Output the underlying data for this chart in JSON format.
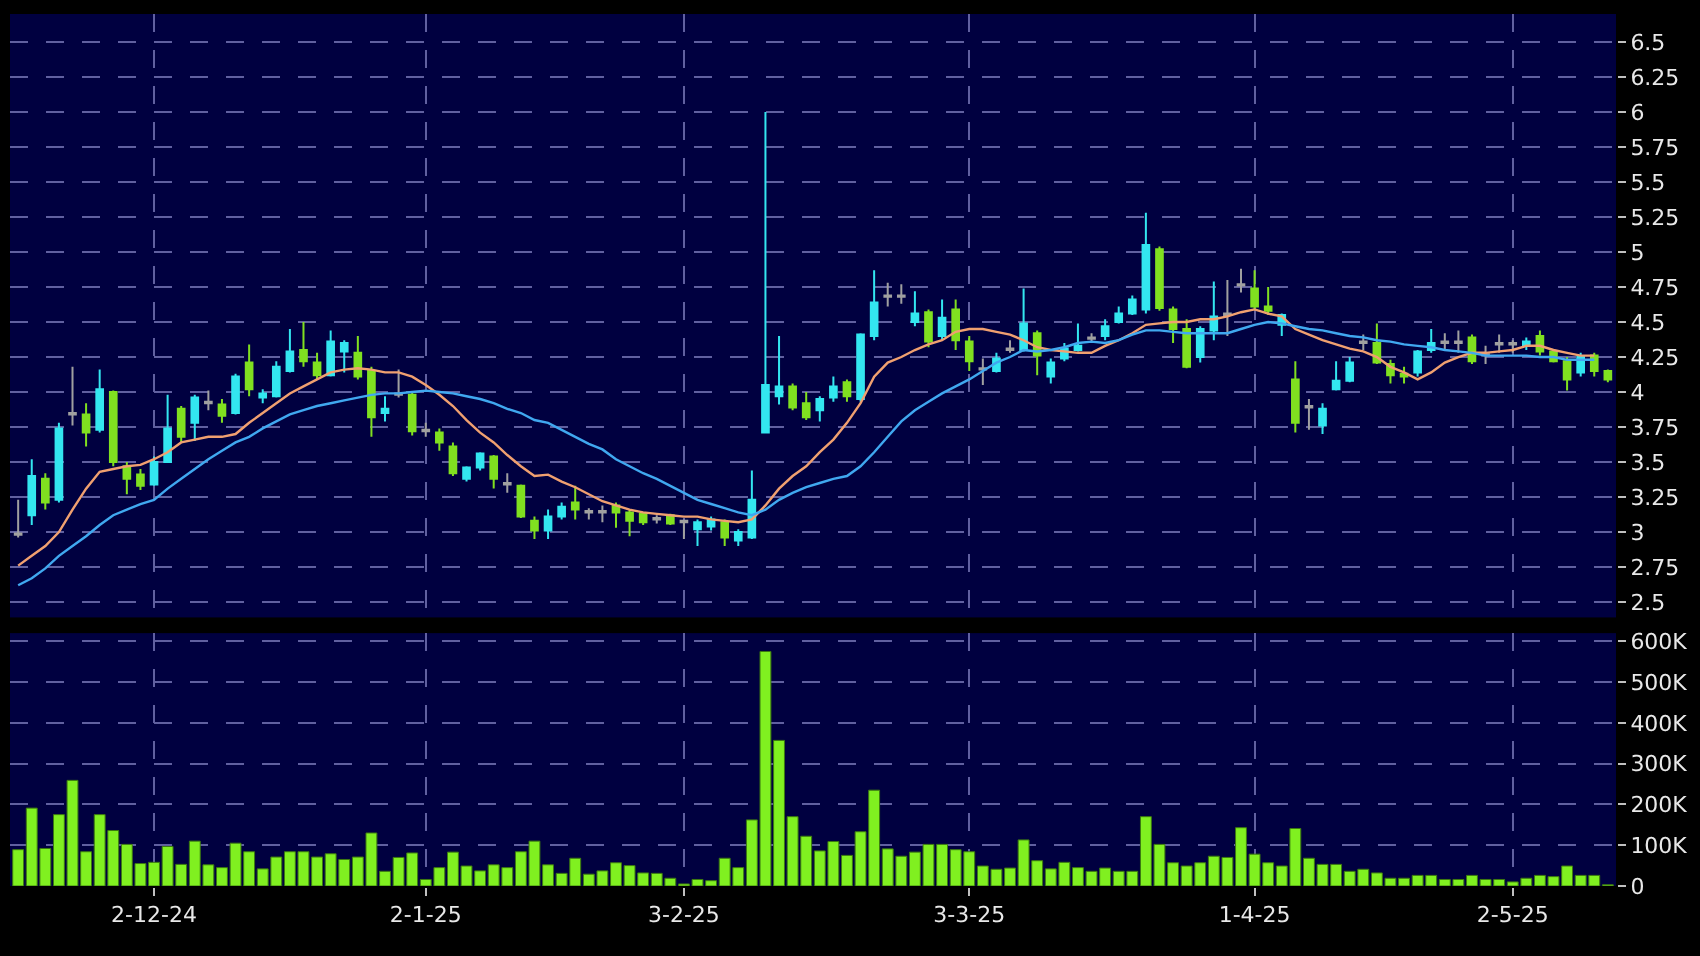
{
  "chart_data": [
    {
      "type": "candlestick",
      "categories": [
        null,
        null,
        null,
        null,
        null,
        null,
        null,
        null,
        null,
        null,
        null,
        null,
        null,
        null,
        null,
        null,
        null,
        null,
        null,
        null,
        null,
        null,
        null,
        null,
        null,
        null,
        null,
        null,
        null,
        null,
        null,
        null,
        null,
        null,
        null,
        null,
        null,
        null,
        null,
        null,
        null,
        null,
        null,
        null,
        null,
        null,
        null,
        null,
        null,
        null,
        null,
        null,
        null,
        null,
        null,
        null,
        null,
        null,
        null,
        null,
        null,
        null,
        null,
        null,
        null,
        null,
        null,
        null,
        null,
        null,
        null,
        null,
        null,
        null,
        null,
        null,
        null,
        null,
        null,
        null,
        null,
        null,
        null,
        null,
        null,
        null,
        null,
        null,
        null,
        null,
        null,
        null,
        null,
        null,
        null,
        null,
        null,
        null,
        null,
        null,
        null,
        null,
        null,
        null,
        null,
        null,
        null,
        null,
        null,
        null,
        null,
        null,
        null,
        null,
        null,
        null,
        null,
        null
      ],
      "ohlc": [
        [
          2.98,
          3.23,
          2.96,
          2.99
        ],
        [
          3.12,
          3.52,
          3.05,
          3.4
        ],
        [
          3.38,
          3.42,
          3.16,
          3.21
        ],
        [
          3.23,
          3.78,
          3.21,
          3.74
        ],
        [
          3.84,
          4.18,
          3.76,
          3.85
        ],
        [
          3.84,
          3.92,
          3.61,
          3.71
        ],
        [
          3.73,
          4.16,
          3.71,
          4.02
        ],
        [
          4.0,
          4.01,
          3.47,
          3.5
        ],
        [
          3.47,
          3.5,
          3.27,
          3.38
        ],
        [
          3.41,
          3.45,
          3.3,
          3.33
        ],
        [
          3.34,
          3.54,
          3.33,
          3.5
        ],
        [
          3.5,
          3.98,
          3.5,
          3.74
        ],
        [
          3.88,
          3.9,
          3.64,
          3.68
        ],
        [
          3.78,
          3.98,
          3.65,
          3.96
        ],
        [
          3.92,
          4.01,
          3.87,
          3.93
        ],
        [
          3.91,
          3.95,
          3.78,
          3.83
        ],
        [
          3.85,
          4.13,
          3.84,
          4.11
        ],
        [
          4.21,
          4.34,
          3.97,
          4.02
        ],
        [
          3.96,
          4.02,
          3.92,
          3.99
        ],
        [
          3.97,
          4.22,
          3.96,
          4.18
        ],
        [
          4.15,
          4.45,
          4.14,
          4.29
        ],
        [
          4.3,
          4.5,
          4.18,
          4.22
        ],
        [
          4.21,
          4.28,
          4.09,
          4.12
        ],
        [
          4.12,
          4.44,
          4.11,
          4.36
        ],
        [
          4.29,
          4.37,
          4.14,
          4.35
        ],
        [
          4.28,
          4.4,
          4.09,
          4.11
        ],
        [
          4.15,
          4.18,
          3.68,
          3.82
        ],
        [
          3.85,
          3.97,
          3.79,
          3.88
        ],
        [
          3.98,
          4.16,
          3.96,
          3.99
        ],
        [
          3.98,
          4.0,
          3.69,
          3.72
        ],
        [
          3.72,
          3.78,
          3.68,
          3.73
        ],
        [
          3.71,
          3.74,
          3.58,
          3.64
        ],
        [
          3.61,
          3.64,
          3.4,
          3.42
        ],
        [
          3.38,
          3.47,
          3.36,
          3.46
        ],
        [
          3.46,
          3.57,
          3.44,
          3.56
        ],
        [
          3.54,
          3.55,
          3.31,
          3.38
        ],
        [
          3.34,
          3.42,
          3.28,
          3.35
        ],
        [
          3.33,
          3.34,
          3.1,
          3.11
        ],
        [
          3.08,
          3.11,
          2.95,
          3.01
        ],
        [
          3.01,
          3.16,
          2.95,
          3.11
        ],
        [
          3.11,
          3.21,
          3.09,
          3.18
        ],
        [
          3.21,
          3.33,
          3.09,
          3.16
        ],
        [
          3.14,
          3.17,
          3.09,
          3.15
        ],
        [
          3.14,
          3.19,
          3.07,
          3.15
        ],
        [
          3.19,
          3.21,
          3.03,
          3.14
        ],
        [
          3.14,
          3.16,
          2.97,
          3.08
        ],
        [
          3.13,
          3.14,
          3.05,
          3.07
        ],
        [
          3.09,
          3.12,
          3.06,
          3.1
        ],
        [
          3.12,
          3.13,
          3.05,
          3.06
        ],
        [
          3.07,
          3.09,
          2.95,
          3.08
        ],
        [
          3.02,
          3.09,
          2.9,
          3.07
        ],
        [
          3.04,
          3.11,
          3.01,
          3.09
        ],
        [
          3.07,
          3.09,
          2.9,
          2.96
        ],
        [
          2.94,
          3.02,
          2.9,
          3.0
        ],
        [
          2.96,
          3.44,
          2.95,
          3.23
        ],
        [
          3.71,
          6.0,
          3.71,
          4.05
        ],
        [
          3.97,
          4.4,
          3.91,
          4.04
        ],
        [
          4.04,
          4.06,
          3.87,
          3.89
        ],
        [
          3.92,
          4.0,
          3.8,
          3.82
        ],
        [
          3.87,
          3.97,
          3.79,
          3.95
        ],
        [
          3.96,
          4.11,
          3.93,
          4.04
        ],
        [
          4.07,
          4.09,
          3.93,
          3.97
        ],
        [
          3.95,
          4.42,
          3.93,
          4.41
        ],
        [
          4.4,
          4.87,
          4.37,
          4.64
        ],
        [
          4.68,
          4.78,
          4.61,
          4.69
        ],
        [
          4.68,
          4.77,
          4.63,
          4.69
        ],
        [
          4.5,
          4.72,
          4.47,
          4.56
        ],
        [
          4.57,
          4.59,
          4.32,
          4.36
        ],
        [
          4.4,
          4.66,
          4.37,
          4.53
        ],
        [
          4.59,
          4.66,
          4.3,
          4.37
        ],
        [
          4.36,
          4.4,
          4.15,
          4.22
        ],
        [
          4.16,
          4.24,
          4.05,
          4.17
        ],
        [
          4.15,
          4.28,
          4.14,
          4.24
        ],
        [
          4.3,
          4.37,
          4.28,
          4.31
        ],
        [
          4.3,
          4.74,
          4.29,
          4.49
        ],
        [
          4.42,
          4.44,
          4.12,
          4.26
        ],
        [
          4.11,
          4.24,
          4.06,
          4.21
        ],
        [
          4.24,
          4.35,
          4.22,
          4.31
        ],
        [
          4.3,
          4.49,
          4.29,
          4.33
        ],
        [
          4.38,
          4.42,
          4.35,
          4.39
        ],
        [
          4.4,
          4.52,
          4.37,
          4.47
        ],
        [
          4.5,
          4.61,
          4.49,
          4.56
        ],
        [
          4.56,
          4.69,
          4.55,
          4.66
        ],
        [
          4.59,
          5.28,
          4.56,
          5.05
        ],
        [
          5.02,
          5.04,
          4.58,
          4.6
        ],
        [
          4.59,
          4.61,
          4.35,
          4.45
        ],
        [
          4.45,
          4.52,
          4.17,
          4.18
        ],
        [
          4.25,
          4.47,
          4.21,
          4.45
        ],
        [
          4.44,
          4.79,
          4.37,
          4.54
        ],
        [
          4.55,
          4.8,
          4.4,
          4.56
        ],
        [
          4.76,
          4.88,
          4.71,
          4.77
        ],
        [
          4.74,
          4.87,
          4.59,
          4.61
        ],
        [
          4.61,
          4.75,
          4.55,
          4.58
        ],
        [
          4.48,
          4.56,
          4.4,
          4.55
        ],
        [
          4.09,
          4.22,
          3.71,
          3.78
        ],
        [
          3.89,
          3.95,
          3.73,
          3.9
        ],
        [
          3.76,
          3.92,
          3.7,
          3.88
        ],
        [
          4.02,
          4.22,
          4.01,
          4.08
        ],
        [
          4.08,
          4.25,
          4.07,
          4.21
        ],
        [
          4.35,
          4.41,
          4.3,
          4.36
        ],
        [
          4.35,
          4.49,
          4.2,
          4.21
        ],
        [
          4.2,
          4.23,
          4.06,
          4.12
        ],
        [
          4.13,
          4.18,
          4.06,
          4.11
        ],
        [
          4.14,
          4.3,
          4.11,
          4.29
        ],
        [
          4.3,
          4.45,
          4.28,
          4.35
        ],
        [
          4.35,
          4.42,
          4.3,
          4.36
        ],
        [
          4.35,
          4.44,
          4.28,
          4.36
        ],
        [
          4.39,
          4.41,
          4.2,
          4.22
        ],
        [
          4.26,
          4.33,
          4.2,
          4.27
        ],
        [
          4.34,
          4.41,
          4.28,
          4.35
        ],
        [
          4.34,
          4.37,
          4.28,
          4.35
        ],
        [
          4.33,
          4.39,
          4.3,
          4.36
        ],
        [
          4.4,
          4.44,
          4.26,
          4.29
        ],
        [
          4.29,
          4.3,
          4.21,
          4.22
        ],
        [
          4.22,
          4.25,
          4.01,
          4.09
        ],
        [
          4.14,
          4.28,
          4.11,
          4.25
        ],
        [
          4.26,
          4.28,
          4.11,
          4.15
        ],
        [
          4.15,
          4.16,
          4.07,
          4.09
        ]
      ],
      "colors": [
        "#a0a0a0",
        "#33e6f0",
        "#80e020",
        "#33e6f0",
        "#a0a0a0",
        "#80e020",
        "#33e6f0",
        "#80e020",
        "#80e020",
        "#80e020",
        "#33e6f0",
        "#33e6f0",
        "#80e020",
        "#33e6f0",
        "#a0a0a0",
        "#80e020",
        "#33e6f0",
        "#80e020",
        "#33e6f0",
        "#33e6f0",
        "#33e6f0",
        "#80e020",
        "#80e020",
        "#33e6f0",
        "#33e6f0",
        "#80e020",
        "#80e020",
        "#33e6f0",
        "#a0a0a0",
        "#80e020",
        "#a0a0a0",
        "#80e020",
        "#80e020",
        "#33e6f0",
        "#33e6f0",
        "#80e020",
        "#a0a0a0",
        "#80e020",
        "#80e020",
        "#33e6f0",
        "#33e6f0",
        "#80e020",
        "#a0a0a0",
        "#a0a0a0",
        "#80e020",
        "#80e020",
        "#80e020",
        "#a0a0a0",
        "#80e020",
        "#a0a0a0",
        "#33e6f0",
        "#33e6f0",
        "#80e020",
        "#33e6f0",
        "#33e6f0",
        "#33e6f0",
        "#33e6f0",
        "#80e020",
        "#80e020",
        "#33e6f0",
        "#33e6f0",
        "#80e020",
        "#33e6f0",
        "#33e6f0",
        "#a0a0a0",
        "#a0a0a0",
        "#33e6f0",
        "#80e020",
        "#33e6f0",
        "#80e020",
        "#80e020",
        "#a0a0a0",
        "#33e6f0",
        "#a0a0a0",
        "#33e6f0",
        "#80e020",
        "#33e6f0",
        "#33e6f0",
        "#33e6f0",
        "#a0a0a0",
        "#33e6f0",
        "#33e6f0",
        "#33e6f0",
        "#33e6f0",
        "#80e020",
        "#80e020",
        "#80e020",
        "#33e6f0",
        "#33e6f0",
        "#a0a0a0",
        "#a0a0a0",
        "#80e020",
        "#80e020",
        "#33e6f0",
        "#80e020",
        "#a0a0a0",
        "#33e6f0",
        "#33e6f0",
        "#33e6f0",
        "#a0a0a0",
        "#80e020",
        "#80e020",
        "#80e020",
        "#33e6f0",
        "#33e6f0",
        "#a0a0a0",
        "#a0a0a0",
        "#80e020",
        "#a0a0a0",
        "#a0a0a0",
        "#a0a0a0",
        "#33e6f0",
        "#80e020",
        "#80e020",
        "#80e020",
        "#33e6f0",
        "#80e020",
        "#80e020"
      ],
      "series": [
        {
          "type": "line",
          "color": "#f0a070",
          "values": [
            2.76,
            2.83,
            2.9,
            3.0,
            3.16,
            3.31,
            3.43,
            3.45,
            3.47,
            3.48,
            3.52,
            3.57,
            3.64,
            3.66,
            3.68,
            3.68,
            3.7,
            3.78,
            3.85,
            3.92,
            3.99,
            4.04,
            4.09,
            4.14,
            4.16,
            4.17,
            4.16,
            4.14,
            4.14,
            4.11,
            4.05,
            3.98,
            3.9,
            3.8,
            3.71,
            3.64,
            3.55,
            3.47,
            3.4,
            3.41,
            3.36,
            3.32,
            3.27,
            3.22,
            3.19,
            3.16,
            3.14,
            3.13,
            3.12,
            3.11,
            3.11,
            3.09,
            3.08,
            3.07,
            3.09,
            3.19,
            3.31,
            3.4,
            3.47,
            3.57,
            3.66,
            3.78,
            3.92,
            4.11,
            4.21,
            4.25,
            4.3,
            4.34,
            4.37,
            4.43,
            4.45,
            4.45,
            4.43,
            4.41,
            4.37,
            4.32,
            4.3,
            4.29,
            4.28,
            4.28,
            4.33,
            4.37,
            4.42,
            4.48,
            4.49,
            4.5,
            4.5,
            4.52,
            4.52,
            4.54,
            4.57,
            4.59,
            4.56,
            4.54,
            4.45,
            4.41,
            4.37,
            4.34,
            4.31,
            4.29,
            4.25,
            4.18,
            4.14,
            4.09,
            4.14,
            4.21,
            4.25,
            4.28,
            4.28,
            4.29,
            4.3,
            4.33,
            4.33,
            4.3,
            4.28,
            4.26,
            4.26,
            null
          ]
        },
        {
          "type": "line",
          "color": "#40a8f0",
          "values": [
            2.62,
            2.67,
            2.74,
            2.83,
            2.9,
            2.97,
            3.05,
            3.12,
            3.16,
            3.2,
            3.23,
            3.31,
            3.38,
            3.45,
            3.52,
            3.58,
            3.64,
            3.68,
            3.74,
            3.79,
            3.84,
            3.87,
            3.9,
            3.92,
            3.94,
            3.96,
            3.98,
            3.99,
            3.99,
            4.0,
            4.01,
            4.0,
            3.99,
            3.97,
            3.95,
            3.92,
            3.88,
            3.85,
            3.8,
            3.78,
            3.73,
            3.68,
            3.63,
            3.59,
            3.52,
            3.47,
            3.42,
            3.38,
            3.33,
            3.28,
            3.23,
            3.2,
            3.17,
            3.14,
            3.12,
            3.16,
            3.23,
            3.28,
            3.32,
            3.35,
            3.38,
            3.4,
            3.47,
            3.57,
            3.68,
            3.79,
            3.87,
            3.93,
            3.99,
            4.04,
            4.09,
            4.15,
            4.21,
            4.25,
            4.3,
            4.29,
            4.3,
            4.32,
            4.35,
            4.36,
            4.35,
            4.37,
            4.41,
            4.44,
            4.44,
            4.43,
            4.42,
            4.42,
            4.42,
            4.42,
            4.45,
            4.48,
            4.5,
            4.49,
            4.47,
            4.45,
            4.44,
            4.42,
            4.4,
            4.39,
            4.37,
            4.36,
            4.34,
            4.33,
            4.32,
            4.3,
            4.29,
            4.28,
            4.26,
            4.26,
            4.26,
            4.26,
            4.25,
            4.25,
            4.23,
            4.23,
            4.23,
            null
          ]
        }
      ],
      "ylim": [
        2.39,
        6.7
      ],
      "yticks": [
        2.5,
        2.75,
        3,
        3.25,
        3.5,
        3.75,
        4,
        4.25,
        4.5,
        4.75,
        5,
        5.25,
        5.5,
        5.75,
        6,
        6.25,
        6.5
      ],
      "grid": true,
      "tick_labels": "y"
    },
    {
      "type": "bar",
      "color": "#80f020",
      "categories": [
        null,
        null,
        null,
        null,
        null,
        null,
        null,
        null,
        null,
        null,
        "2-12-24",
        null,
        null,
        null,
        null,
        null,
        null,
        null,
        null,
        null,
        null,
        null,
        null,
        null,
        null,
        null,
        null,
        null,
        null,
        null,
        "2-1-25",
        null,
        null,
        null,
        null,
        null,
        null,
        null,
        null,
        null,
        null,
        null,
        null,
        null,
        null,
        null,
        null,
        null,
        null,
        "3-2-25",
        null,
        null,
        null,
        null,
        null,
        null,
        null,
        null,
        null,
        null,
        null,
        null,
        null,
        null,
        null,
        null,
        null,
        null,
        null,
        null,
        "3-3-25",
        null,
        null,
        null,
        null,
        null,
        null,
        null,
        null,
        null,
        null,
        null,
        null,
        null,
        null,
        null,
        null,
        null,
        null,
        null,
        null,
        "1-4-25",
        null,
        null,
        null,
        null,
        null,
        null,
        null,
        null,
        null,
        null,
        null,
        null,
        null,
        null,
        null,
        null,
        null,
        null,
        "2-5-25",
        null,
        null,
        null,
        null,
        null,
        null,
        null
      ],
      "values": [
        89000,
        191000,
        92000,
        175000,
        259000,
        84000,
        175000,
        136000,
        102000,
        55000,
        58000,
        97000,
        53000,
        110000,
        52000,
        45000,
        105000,
        84000,
        42000,
        71000,
        84000,
        84000,
        71000,
        79000,
        65000,
        71000,
        130000,
        36000,
        70000,
        81000,
        16000,
        45000,
        83000,
        49000,
        37000,
        52000,
        45000,
        84000,
        110000,
        52000,
        31000,
        68000,
        29000,
        37000,
        57000,
        50000,
        32000,
        31000,
        19000,
        5000,
        16000,
        13000,
        68000,
        45000,
        162000,
        575000,
        357000,
        170000,
        122000,
        86000,
        109000,
        75000,
        133000,
        235000,
        91000,
        73000,
        83000,
        102000,
        102000,
        89000,
        84000,
        49000,
        41000,
        44000,
        113000,
        62000,
        42000,
        58000,
        45000,
        36000,
        44000,
        36000,
        36000,
        170000,
        102000,
        57000,
        49000,
        57000,
        73000,
        70000,
        143000,
        78000,
        57000,
        49000,
        141000,
        68000,
        53000,
        53000,
        36000,
        41000,
        32000,
        19000,
        19000,
        26000,
        26000,
        16000,
        16000,
        26000,
        16000,
        16000,
        10000,
        19000,
        26000,
        23000,
        49000,
        26000,
        26000,
        3000
      ],
      "ylim": [
        0,
        620000
      ],
      "yticks": [
        0,
        {
          "value": 100000,
          "label": "100K"
        },
        {
          "value": 200000,
          "label": "200K"
        },
        {
          "value": 300000,
          "label": "300K"
        },
        {
          "value": 400000,
          "label": "400K"
        },
        {
          "value": 500000,
          "label": "500K"
        },
        {
          "value": 600000,
          "label": "600K"
        }
      ],
      "grid": true
    }
  ]
}
